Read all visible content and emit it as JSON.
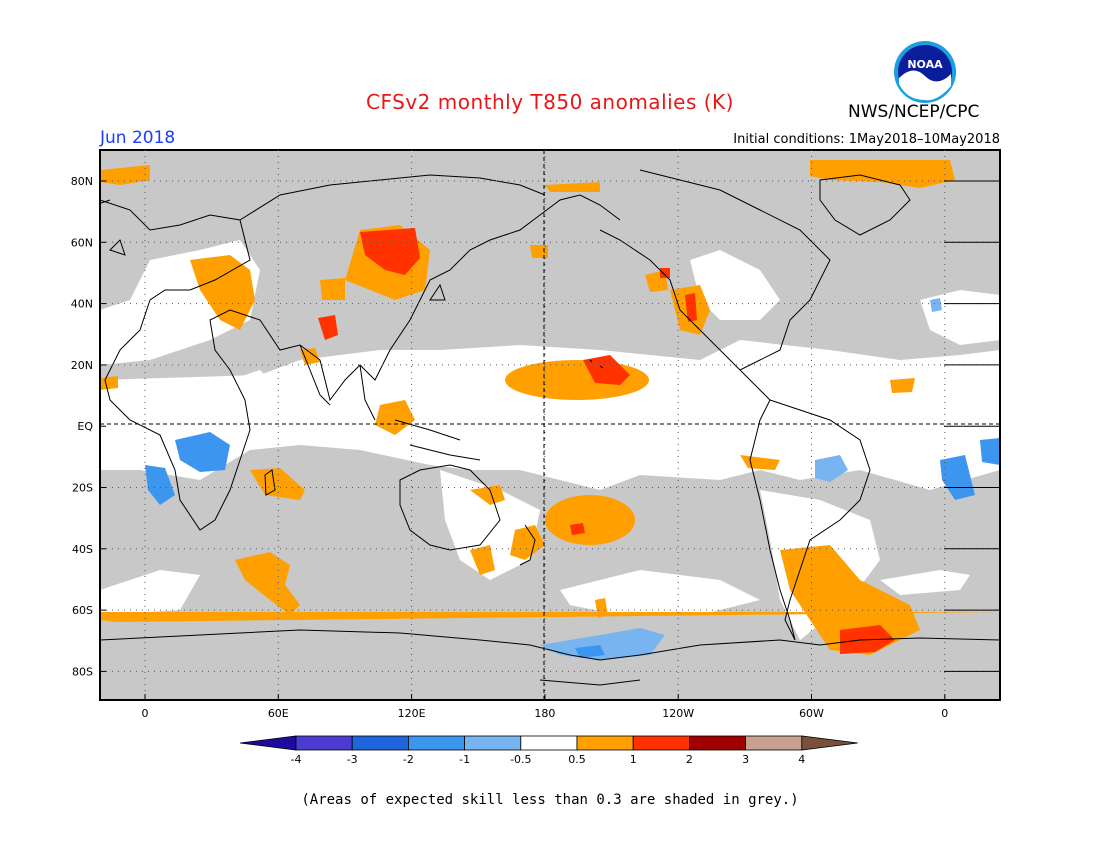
{
  "header": {
    "title": "CFSv2 monthly T850 anomalies (K)",
    "period": "Jun 2018",
    "initial_conditions": "Initial conditions: 1May2018–10May2018",
    "agency": "NWS/NCEP/CPC",
    "logo_text": "NOAA"
  },
  "map": {
    "lat_ticks": [
      "80N",
      "60N",
      "40N",
      "20N",
      "EQ",
      "20S",
      "40S",
      "60S",
      "80S"
    ],
    "lon_ticks": [
      "0",
      "60E",
      "120E",
      "180",
      "120W",
      "60W",
      "0"
    ],
    "grey_color": "#c8c8c8",
    "icons": [
      "noaa-logo-icon"
    ]
  },
  "colorbar": {
    "labels": [
      "-4",
      "-3",
      "-2",
      "-1",
      "-0.5",
      "0.5",
      "1",
      "2",
      "3",
      "4"
    ],
    "colors": [
      "#1e0aa0",
      "#4a3cd0",
      "#1e64dc",
      "#3c96f0",
      "#78b4f0",
      "#ffffff",
      "#ffa000",
      "#ff3200",
      "#a00000",
      "#c8a090",
      "#78503c"
    ]
  },
  "footnote": "(Areas of expected skill less than 0.3 are shaded in grey.)"
}
